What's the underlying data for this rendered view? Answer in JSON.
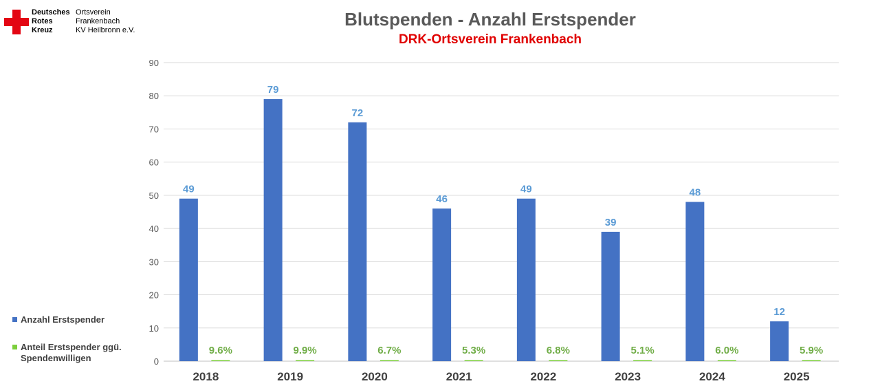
{
  "header": {
    "logo_org_lines": [
      "Deutsches",
      "Rotes",
      "Kreuz"
    ],
    "logo_sub_lines": [
      "Ortsverein",
      "Frankenbach",
      "KV Heilbronn e.V."
    ],
    "logo_color": "#e30613"
  },
  "legend": [
    {
      "label": "Anzahl Erstspender",
      "color": "#4472c4"
    },
    {
      "label": "Anteil Erstspender ggü.\nSpendenwilligen",
      "color": "#7ccf3c"
    }
  ],
  "chart_data": {
    "type": "bar",
    "title": "Blutspenden - Anzahl Erstspender",
    "subtitle": "DRK-Ortsverein Frankenbach",
    "categories": [
      "2018",
      "2019",
      "2020",
      "2021",
      "2022",
      "2023",
      "2024",
      "2025"
    ],
    "series": [
      {
        "name": "Anzahl Erstspender",
        "values": [
          49,
          79,
          72,
          46,
          49,
          39,
          48,
          12
        ],
        "color": "#4472c4",
        "label_color": "#5b9bd5"
      },
      {
        "name": "Anteil Erstspender ggü. Spendenwilligen",
        "values": [
          0.096,
          0.099,
          0.067,
          0.053,
          0.068,
          0.051,
          0.06,
          0.059
        ],
        "labels": [
          "9.6%",
          "9.9%",
          "6.7%",
          "5.3%",
          "6.8%",
          "5.1%",
          "6.0%",
          "5.9%"
        ],
        "color": "#7ccf3c",
        "label_color": "#70ad47"
      }
    ],
    "ylim": [
      0,
      90
    ],
    "yticks": [
      0,
      10,
      20,
      30,
      40,
      50,
      60,
      70,
      80,
      90
    ],
    "grid": true,
    "legend_position": "left"
  }
}
